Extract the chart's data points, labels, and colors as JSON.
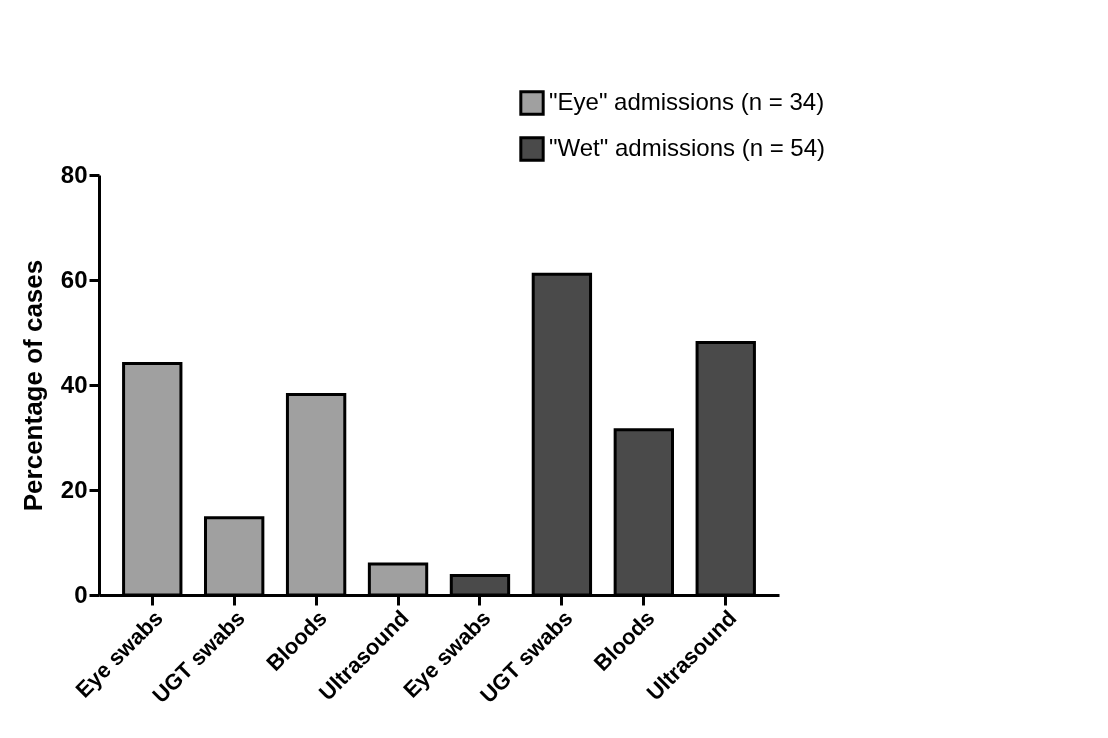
{
  "chart_data": {
    "type": "bar",
    "ylabel": "Percentage of cases",
    "categories": [
      "Eye swabs",
      "UGT swabs",
      "Bloods",
      "Ultrasound",
      null,
      "Eye swabs",
      "UGT swabs",
      "Bloods",
      "Ultrasound"
    ],
    "series": [
      {
        "name": "\"Eye\" admissions (n = 34)",
        "color": "#a0a0a0",
        "values": [
          44.1,
          14.7,
          38.2,
          5.9,
          null,
          null,
          null,
          null,
          null
        ]
      },
      {
        "name": "\"Wet\" admissions (n = 54)",
        "color": "#4a4a4a",
        "values": [
          null,
          null,
          null,
          null,
          null,
          3.7,
          61.1,
          31.5,
          48.1
        ]
      }
    ],
    "ylim": [
      0,
      80
    ],
    "yticks": [
      0,
      20,
      40,
      60,
      80
    ],
    "grid": false,
    "legend": "top right"
  }
}
